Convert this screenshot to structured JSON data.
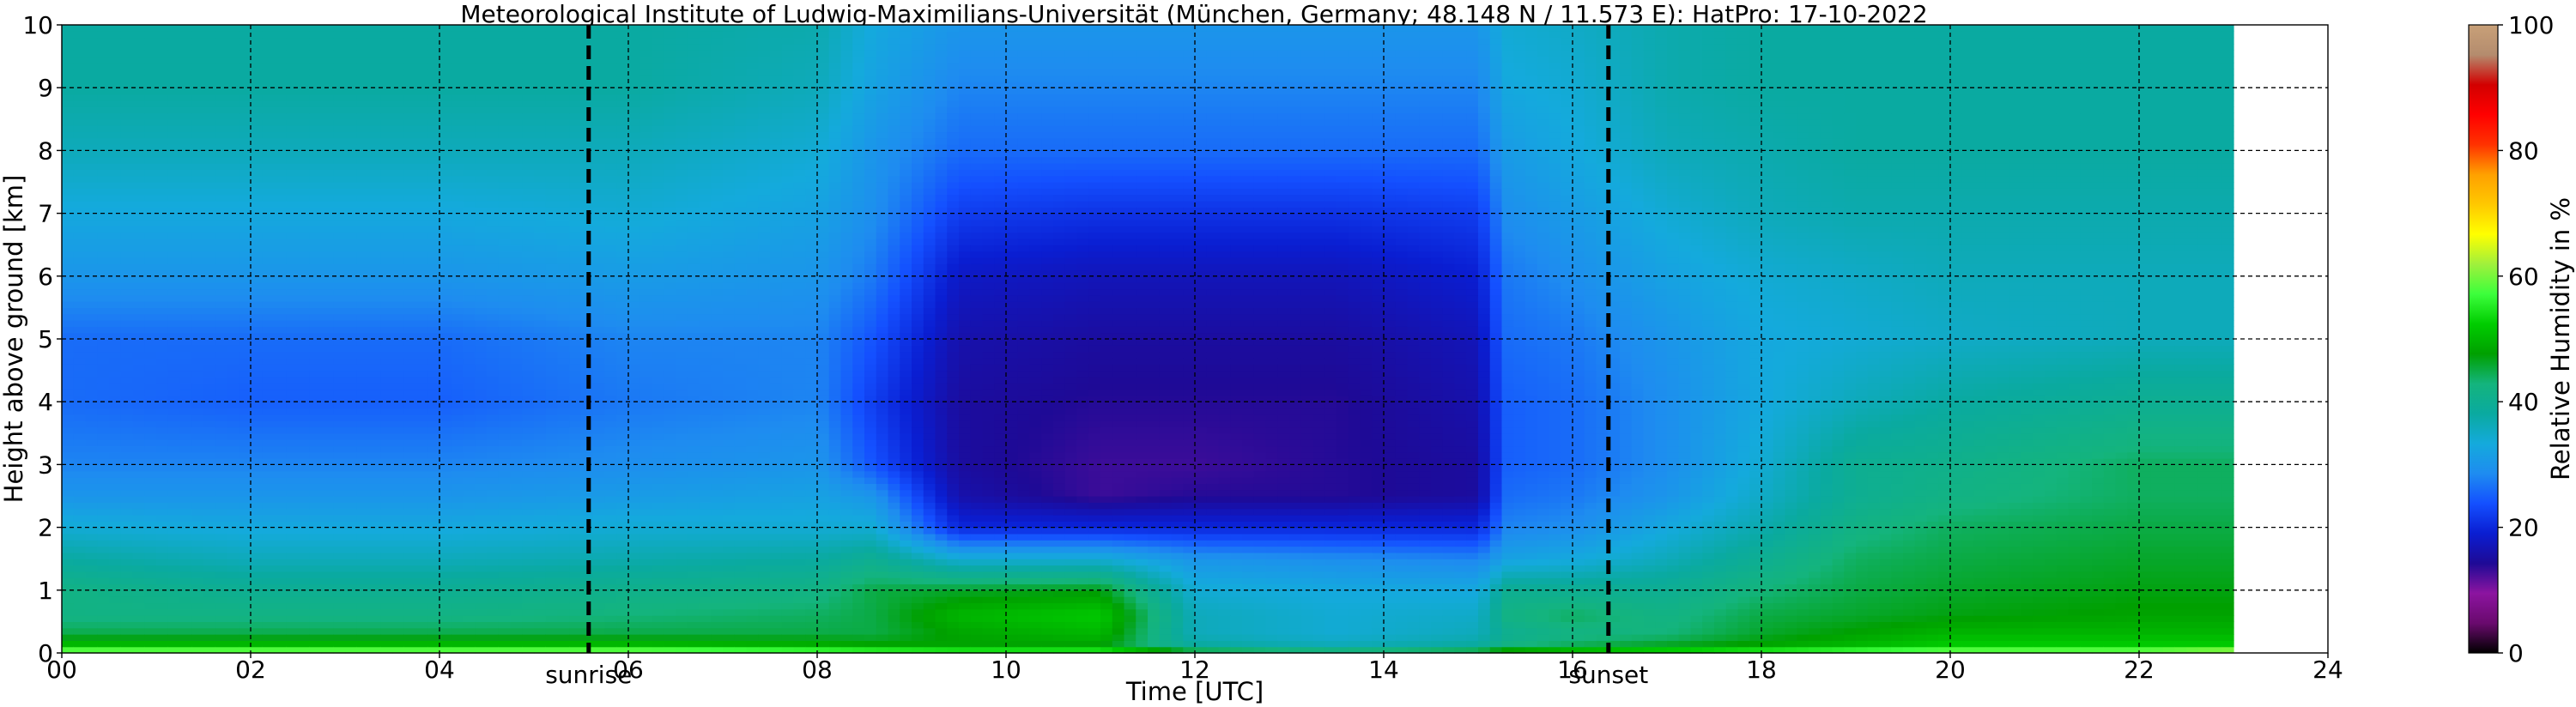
{
  "chart_data": {
    "type": "heatmap",
    "title": "Meteorological Institute of Ludwig-Maximilians-Universität (München, Germany; 48.148 N / 11.573 E):    HatPro: 17-10-2022",
    "xlabel": "Time [UTC]",
    "ylabel": "Height above ground [km]",
    "xlim": [
      0,
      24
    ],
    "ylim": [
      0,
      10
    ],
    "data_end_hour": 23,
    "x_ticks": [
      "00",
      "02",
      "04",
      "06",
      "08",
      "10",
      "12",
      "14",
      "16",
      "18",
      "20",
      "22",
      "24"
    ],
    "y_ticks": [
      "0",
      "1",
      "2",
      "3",
      "4",
      "5",
      "6",
      "7",
      "8",
      "9",
      "10"
    ],
    "grid": true,
    "colorbar": {
      "label": "Relative Humidity in %",
      "range": [
        0,
        100
      ],
      "ticks": [
        "0",
        "20",
        "40",
        "60",
        "80",
        "100"
      ],
      "colors": [
        "#000000",
        "#6a0a6e",
        "#8c14a0",
        "#1e0a96",
        "#0a1ed2",
        "#1450ff",
        "#1e8cf0",
        "#14aadc",
        "#0aaaa0",
        "#14b47d",
        "#00a000",
        "#00cd00",
        "#3cff3c",
        "#a0f03c",
        "#ffff00",
        "#ffc800",
        "#ffa000",
        "#ff3200",
        "#ff0000",
        "#d20000",
        "#b48c6e",
        "#c8a078"
      ]
    },
    "events": [
      {
        "label": "sunrise",
        "hour": 5.58
      },
      {
        "label": "sunset",
        "hour": 16.38
      }
    ],
    "humidity_profile": {
      "heights_km": [
        0,
        0.05,
        0.15,
        0.3,
        0.6,
        1.0,
        1.5,
        2.0,
        2.5,
        3.0,
        4.0,
        5.0,
        6.0,
        7.0,
        8.0,
        9.0,
        10.0
      ],
      "columns": [
        {
          "hour": 0,
          "values": [
            70,
            58,
            50,
            45,
            42,
            42,
            38,
            34,
            30,
            28,
            26,
            26,
            30,
            33,
            36,
            38,
            38
          ]
        },
        {
          "hour": 2,
          "values": [
            70,
            58,
            50,
            45,
            42,
            40,
            36,
            33,
            30,
            28,
            25,
            26,
            30,
            33,
            36,
            38,
            38
          ]
        },
        {
          "hour": 4,
          "values": [
            70,
            58,
            50,
            45,
            42,
            40,
            36,
            33,
            30,
            28,
            25,
            26,
            30,
            33,
            36,
            38,
            38
          ]
        },
        {
          "hour": 6,
          "values": [
            70,
            58,
            50,
            45,
            43,
            41,
            37,
            34,
            31,
            29,
            27,
            28,
            31,
            34,
            36,
            38,
            38
          ]
        },
        {
          "hour": 8,
          "values": [
            70,
            56,
            49,
            45,
            44,
            42,
            38,
            34,
            32,
            30,
            28,
            28,
            30,
            32,
            34,
            36,
            37
          ]
        },
        {
          "hour": 8.6,
          "values": [
            70,
            55,
            48,
            45,
            45,
            45,
            40,
            34,
            30,
            24,
            22,
            24,
            27,
            29,
            30,
            32,
            33
          ]
        },
        {
          "hour": 9.5,
          "values": [
            68,
            54,
            48,
            48,
            50,
            46,
            34,
            20,
            16,
            15,
            15,
            16,
            18,
            22,
            26,
            28,
            30
          ]
        },
        {
          "hour": 11,
          "values": [
            66,
            54,
            48,
            50,
            52,
            47,
            34,
            20,
            13,
            13,
            14,
            15,
            17,
            21,
            26,
            28,
            30
          ]
        },
        {
          "hour": 12,
          "values": [
            64,
            44,
            38,
            36,
            36,
            34,
            30,
            20,
            14,
            13,
            14,
            15,
            17,
            21,
            26,
            28,
            30
          ]
        },
        {
          "hour": 13.5,
          "values": [
            62,
            42,
            36,
            34,
            34,
            33,
            29,
            20,
            14,
            14,
            14,
            15,
            17,
            21,
            26,
            28,
            30
          ]
        },
        {
          "hour": 15,
          "values": [
            62,
            44,
            38,
            36,
            35,
            33,
            28,
            20,
            15,
            15,
            16,
            17,
            19,
            22,
            26,
            28,
            30
          ]
        },
        {
          "hour": 15.3,
          "values": [
            64,
            48,
            42,
            40,
            42,
            40,
            32,
            28,
            26,
            25,
            25,
            26,
            27,
            29,
            31,
            33,
            34
          ]
        },
        {
          "hour": 16,
          "values": [
            64,
            50,
            44,
            42,
            44,
            40,
            33,
            29,
            27,
            26,
            26,
            27,
            29,
            31,
            33,
            34,
            35
          ]
        },
        {
          "hour": 17,
          "values": [
            66,
            52,
            46,
            43,
            42,
            40,
            36,
            33,
            30,
            29,
            29,
            30,
            32,
            34,
            36,
            37,
            37
          ]
        },
        {
          "hour": 18,
          "values": [
            68,
            54,
            48,
            46,
            45,
            43,
            40,
            37,
            35,
            34,
            33,
            33,
            34,
            36,
            37,
            38,
            38
          ]
        },
        {
          "hour": 19,
          "values": [
            70,
            56,
            50,
            48,
            46,
            45,
            44,
            42,
            40,
            40,
            36,
            34,
            35,
            37,
            38,
            38,
            38
          ]
        },
        {
          "hour": 20,
          "values": [
            72,
            58,
            52,
            50,
            47,
            46,
            45,
            44,
            42,
            41,
            38,
            35,
            36,
            37,
            38,
            38,
            38
          ]
        },
        {
          "hour": 22,
          "values": [
            74,
            58,
            52,
            50,
            48,
            47,
            46,
            45,
            44,
            44,
            40,
            36,
            36,
            37,
            38,
            38,
            38
          ]
        },
        {
          "hour": 23,
          "values": [
            76,
            60,
            52,
            50,
            48,
            47,
            46,
            45,
            44,
            44,
            40,
            36,
            36,
            37,
            38,
            38,
            38
          ]
        }
      ]
    }
  }
}
